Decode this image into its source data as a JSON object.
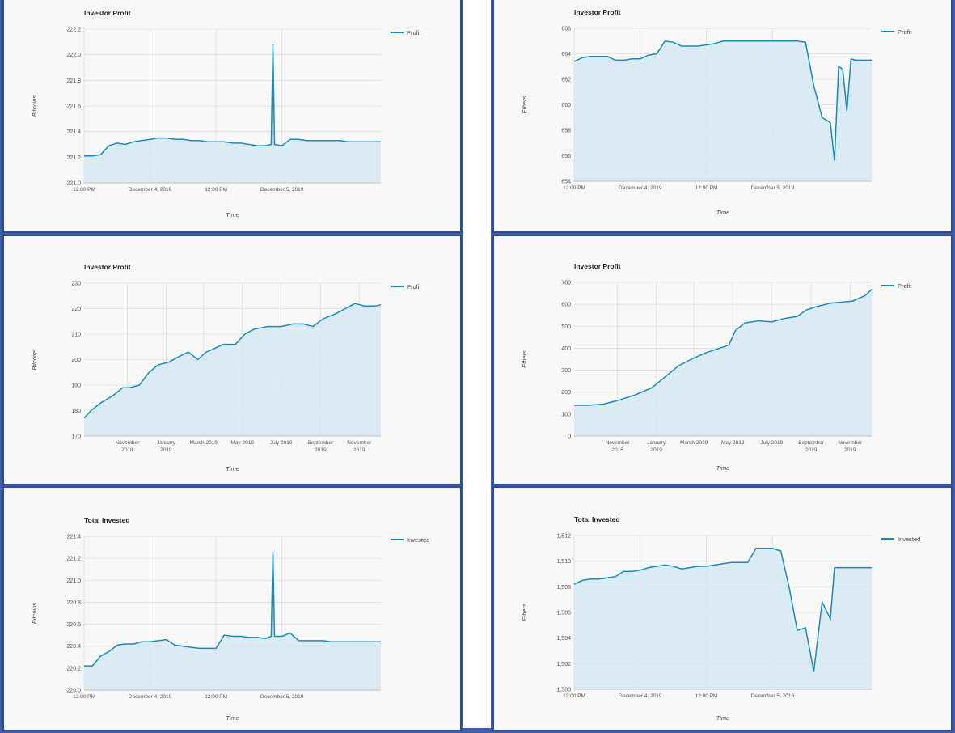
{
  "colors": {
    "line": "#1a8bb8",
    "fill": "#d3e7f2",
    "grid": "#dcdcdc",
    "text": "#555555",
    "frame": "#2c4b93",
    "background": "#3e5fa3"
  },
  "chart_data": [
    {
      "type": "area",
      "title": "Investor Profit",
      "xlabel": "Time",
      "ylabel": "Bitcoins",
      "series": [
        {
          "name": "Profit"
        }
      ],
      "legend_position": "top-right",
      "ylim": [
        221.0,
        222.2
      ],
      "yticks": [
        221.0,
        221.2,
        221.4,
        221.6,
        221.8,
        222.0,
        222.2
      ],
      "ytick_labels": [
        "221.0",
        "221.2",
        "221.4",
        "221.6",
        "221.8",
        "222.0",
        "222.2"
      ],
      "xlim": [
        0,
        36
      ],
      "xticks": [
        0,
        8,
        16,
        24
      ],
      "xtick_labels": [
        "12:00 PM",
        "December 4, 2019",
        "12:00 PM",
        "December 5, 2019"
      ],
      "grid": true,
      "x": [
        0,
        1,
        2,
        3,
        4,
        5,
        6,
        7,
        8,
        9,
        10,
        11,
        12,
        13,
        14,
        15,
        16,
        17,
        18,
        19,
        20,
        21,
        22,
        22.7,
        22.9,
        23.1,
        24,
        25,
        26,
        27,
        28,
        29,
        30,
        31,
        32,
        33,
        34,
        35,
        36
      ],
      "y": [
        221.21,
        221.21,
        221.22,
        221.29,
        221.31,
        221.3,
        221.32,
        221.33,
        221.34,
        221.35,
        221.35,
        221.34,
        221.34,
        221.33,
        221.33,
        221.32,
        221.32,
        221.32,
        221.31,
        221.31,
        221.3,
        221.29,
        221.29,
        221.3,
        222.08,
        221.3,
        221.29,
        221.34,
        221.34,
        221.33,
        221.33,
        221.33,
        221.33,
        221.33,
        221.32,
        221.32,
        221.32,
        221.32,
        221.32
      ]
    },
    {
      "type": "area",
      "title": "Investor Profit",
      "xlabel": "Time",
      "ylabel": "Ethers",
      "series": [
        {
          "name": "Profit"
        }
      ],
      "legend_position": "top-right",
      "ylim": [
        654,
        666
      ],
      "yticks": [
        654,
        656,
        658,
        660,
        662,
        664,
        666
      ],
      "ytick_labels": [
        "654",
        "656",
        "658",
        "660",
        "662",
        "664",
        "666"
      ],
      "xlim": [
        0,
        36
      ],
      "xticks": [
        0,
        8,
        16,
        24
      ],
      "xtick_labels": [
        "12:00 PM",
        "December 4, 2019",
        "12:00 PM",
        "December 5, 2019"
      ],
      "grid": true,
      "x": [
        0,
        1,
        2,
        3,
        4,
        5,
        6,
        7,
        8,
        9,
        10,
        11,
        12,
        13,
        14,
        15,
        16,
        17,
        18,
        19,
        20,
        21,
        22,
        23,
        24,
        25,
        26,
        27,
        28,
        29,
        30,
        31,
        31.5,
        32,
        32.5,
        33,
        33.5,
        34,
        34.5,
        35,
        35.5,
        36
      ],
      "y": [
        663.4,
        663.7,
        663.8,
        663.8,
        663.8,
        663.5,
        663.5,
        663.6,
        663.6,
        663.9,
        664.0,
        665.0,
        664.9,
        664.6,
        664.6,
        664.6,
        664.7,
        664.8,
        665.0,
        665.0,
        665.0,
        665.0,
        665.0,
        665.0,
        665.0,
        665.0,
        665.0,
        665.0,
        664.9,
        661.5,
        659.0,
        658.6,
        655.6,
        663.0,
        662.8,
        659.5,
        663.6,
        663.5,
        663.5,
        663.5,
        663.5,
        663.5
      ]
    },
    {
      "type": "area",
      "title": "Investor Profit",
      "xlabel": "Time",
      "ylabel": "Bitcoins",
      "series": [
        {
          "name": "Profit"
        }
      ],
      "legend_position": "top-right",
      "ylim": [
        170,
        230
      ],
      "yticks": [
        170,
        180,
        190,
        200,
        210,
        220,
        230
      ],
      "ytick_labels": [
        "170",
        "180",
        "190",
        "200",
        "210",
        "220",
        "230"
      ],
      "xlim": [
        "2018-08-25",
        "2019-12-05"
      ],
      "xticks": [
        "2018-11-01",
        "2019-01-01",
        "2019-03-01",
        "2019-05-01",
        "2019-07-01",
        "2019-09-01",
        "2019-11-01"
      ],
      "xtick_labels": [
        [
          "November",
          "2018"
        ],
        [
          "January",
          "2019"
        ],
        [
          "March 2019"
        ],
        [
          "May 2019"
        ],
        [
          "July 2019"
        ],
        [
          "September",
          "2019"
        ],
        [
          "November",
          "2019"
        ]
      ],
      "grid": true,
      "x": [
        "2018-08-25",
        "2018-09-05",
        "2018-09-20",
        "2018-10-10",
        "2018-10-25",
        "2018-11-05",
        "2018-11-20",
        "2018-12-05",
        "2018-12-20",
        "2019-01-05",
        "2019-01-20",
        "2019-02-05",
        "2019-02-20",
        "2019-03-05",
        "2019-03-15",
        "2019-04-01",
        "2019-04-20",
        "2019-05-05",
        "2019-05-20",
        "2019-06-10",
        "2019-07-01",
        "2019-07-20",
        "2019-08-05",
        "2019-08-20",
        "2019-09-05",
        "2019-09-25",
        "2019-10-10",
        "2019-10-25",
        "2019-11-10",
        "2019-11-25",
        "2019-12-05"
      ],
      "y": [
        177,
        180,
        183,
        186,
        189,
        189,
        190,
        195,
        198,
        199,
        201,
        203,
        200,
        203,
        204,
        206,
        206,
        210,
        212,
        213,
        213,
        214,
        214,
        213,
        216,
        218,
        220,
        222,
        221,
        221,
        221.5
      ]
    },
    {
      "type": "area",
      "title": "Investor Profit",
      "xlabel": "Time",
      "ylabel": "Ethers",
      "series": [
        {
          "name": "Profit"
        }
      ],
      "legend_position": "top-right",
      "ylim": [
        0,
        700
      ],
      "yticks": [
        0,
        100,
        200,
        300,
        400,
        500,
        600,
        700
      ],
      "ytick_labels": [
        "0",
        "100",
        "200",
        "300",
        "400",
        "500",
        "600",
        "700"
      ],
      "xlim": [
        "2018-08-25",
        "2019-12-05"
      ],
      "xticks": [
        "2018-11-01",
        "2019-01-01",
        "2019-03-01",
        "2019-05-01",
        "2019-07-01",
        "2019-09-01",
        "2019-11-01"
      ],
      "xtick_labels": [
        [
          "November",
          "2018"
        ],
        [
          "January",
          "2019"
        ],
        [
          "March 2019"
        ],
        [
          "May 2019"
        ],
        [
          "July 2019"
        ],
        [
          "September",
          "2019"
        ],
        [
          "November",
          "2019"
        ]
      ],
      "grid": true,
      "x": [
        "2018-08-25",
        "2018-09-15",
        "2018-10-10",
        "2018-11-05",
        "2018-12-01",
        "2018-12-25",
        "2019-01-15",
        "2019-02-05",
        "2019-02-25",
        "2019-03-20",
        "2019-04-10",
        "2019-04-25",
        "2019-05-05",
        "2019-05-20",
        "2019-06-10",
        "2019-07-01",
        "2019-07-20",
        "2019-08-10",
        "2019-08-25",
        "2019-09-10",
        "2019-10-01",
        "2019-10-20",
        "2019-11-05",
        "2019-11-25",
        "2019-12-05"
      ],
      "y": [
        140,
        140,
        145,
        165,
        190,
        220,
        270,
        320,
        350,
        380,
        400,
        415,
        480,
        515,
        525,
        520,
        535,
        545,
        575,
        590,
        605,
        610,
        615,
        640,
        668
      ]
    },
    {
      "type": "area",
      "title": "Total Invested",
      "xlabel": "Time",
      "ylabel": "Bitcoins",
      "series": [
        {
          "name": "Invested"
        }
      ],
      "legend_position": "top-right",
      "ylim": [
        220.0,
        221.4
      ],
      "yticks": [
        220.0,
        220.2,
        220.4,
        220.6,
        220.8,
        221.0,
        221.2,
        221.4
      ],
      "ytick_labels": [
        "220.0",
        "220.2",
        "220.4",
        "220.6",
        "220.8",
        "221.0",
        "221.2",
        "221.4"
      ],
      "xlim": [
        0,
        36
      ],
      "xticks": [
        0,
        8,
        16,
        24
      ],
      "xtick_labels": [
        "12:00 PM",
        "December 4, 2019",
        "12:00 PM",
        "December 5, 2019"
      ],
      "grid": true,
      "x": [
        0,
        1,
        2,
        3,
        4,
        5,
        6,
        7,
        8,
        9,
        10,
        11,
        12,
        13,
        14,
        15,
        16,
        17,
        18,
        19,
        20,
        21,
        22,
        22.7,
        22.9,
        23.1,
        24,
        25,
        26,
        27,
        28,
        29,
        30,
        31,
        32,
        33,
        34,
        35,
        36
      ],
      "y": [
        220.22,
        220.22,
        220.31,
        220.35,
        220.41,
        220.42,
        220.42,
        220.44,
        220.44,
        220.45,
        220.46,
        220.41,
        220.4,
        220.39,
        220.38,
        220.38,
        220.38,
        220.5,
        220.49,
        220.49,
        220.48,
        220.48,
        220.47,
        220.49,
        221.26,
        220.49,
        220.49,
        220.52,
        220.45,
        220.45,
        220.45,
        220.45,
        220.44,
        220.44,
        220.44,
        220.44,
        220.44,
        220.44,
        220.44
      ]
    },
    {
      "type": "area",
      "title": "Total Invested",
      "xlabel": "Time",
      "ylabel": "Ethers",
      "series": [
        {
          "name": "Invested"
        }
      ],
      "legend_position": "top-right",
      "ylim": [
        1500,
        1512
      ],
      "yticks": [
        1500,
        1502,
        1504,
        1506,
        1508,
        1510,
        1512
      ],
      "ytick_labels": [
        "1,500",
        "1,502",
        "1,504",
        "1,506",
        "1,508",
        "1,510",
        "1,512"
      ],
      "xlim": [
        0,
        36
      ],
      "xticks": [
        0,
        8,
        16,
        24
      ],
      "xtick_labels": [
        "12:00 PM",
        "December 4, 2019",
        "12:00 PM",
        "December 5, 2019"
      ],
      "grid": true,
      "x": [
        0,
        1,
        2,
        3,
        4,
        5,
        6,
        7,
        8,
        9,
        10,
        11,
        12,
        13,
        14,
        15,
        16,
        17,
        18,
        19,
        20,
        21,
        22,
        23,
        24,
        25,
        26,
        27,
        28,
        29,
        30,
        31,
        31.5,
        32,
        32.5,
        33,
        33.5,
        34,
        34.5,
        35,
        35.5,
        36
      ],
      "y": [
        1508.2,
        1508.5,
        1508.6,
        1508.6,
        1508.7,
        1508.8,
        1509.2,
        1509.2,
        1509.3,
        1509.5,
        1509.6,
        1509.7,
        1509.6,
        1509.4,
        1509.5,
        1509.6,
        1509.6,
        1509.7,
        1509.8,
        1509.9,
        1509.9,
        1509.9,
        1511.0,
        1511.0,
        1511.0,
        1510.8,
        1508.0,
        1504.6,
        1504.8,
        1501.4,
        1506.8,
        1505.5,
        1509.5,
        1509.5,
        1509.5,
        1509.5,
        1509.5,
        1509.5,
        1509.5,
        1509.5,
        1509.5,
        1509.5
      ]
    }
  ]
}
